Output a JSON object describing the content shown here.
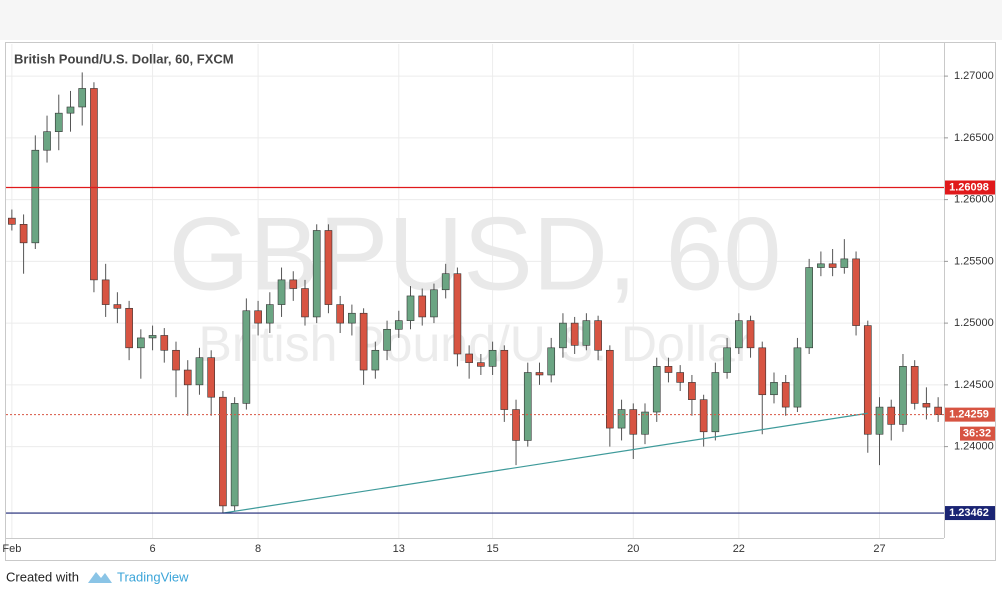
{
  "chart_data": {
    "type": "candlestick",
    "title": "British Pound/U.S. Dollar, 60, FXCM",
    "watermark": "GBPUSD, 60",
    "watermark_subtitle": "British Pound/U.S. Dollar",
    "categories": [
      "Feb",
      null,
      null,
      null,
      null,
      null,
      null,
      null,
      null,
      null,
      null,
      null,
      "6",
      null,
      null,
      null,
      null,
      null,
      null,
      null,
      null,
      "8",
      null,
      null,
      null,
      null,
      null,
      null,
      null,
      null,
      null,
      null,
      null,
      "13",
      null,
      null,
      null,
      null,
      null,
      null,
      null,
      "15",
      null,
      null,
      null,
      null,
      null,
      null,
      null,
      null,
      null,
      null,
      null,
      "20",
      null,
      null,
      null,
      null,
      null,
      null,
      null,
      null,
      "22",
      null,
      null,
      null,
      null,
      null,
      null,
      null,
      null,
      null,
      null,
      null,
      "27",
      null,
      null,
      null,
      null,
      null
    ],
    "open": [
      1.2585,
      1.258,
      1.2565,
      1.264,
      1.2655,
      1.267,
      1.2675,
      1.269,
      1.2535,
      1.2515,
      1.2512,
      1.248,
      1.2488,
      1.249,
      1.2478,
      1.2462,
      1.245,
      1.2472,
      1.244,
      1.2352,
      1.2435,
      1.251,
      1.25,
      1.2515,
      1.2535,
      1.2528,
      1.2505,
      1.2575,
      1.2515,
      1.25,
      1.2508,
      1.2462,
      1.2478,
      1.2495,
      1.2502,
      1.2522,
      1.2505,
      1.2527,
      1.254,
      1.2475,
      1.2468,
      1.2465,
      1.2478,
      1.243,
      1.2405,
      1.246,
      1.2458,
      1.248,
      1.25,
      1.2482,
      1.2502,
      1.2478,
      1.2415,
      1.243,
      1.241,
      1.2428,
      1.2465,
      1.246,
      1.2452,
      1.2438,
      1.2412,
      1.246,
      1.248,
      1.2502,
      1.248,
      1.2442,
      1.2452,
      1.2432,
      1.248,
      1.2545,
      1.2548,
      1.2545,
      1.2552,
      1.2498,
      1.241,
      1.2432,
      1.2418,
      1.2465,
      1.2435,
      1.2432
    ],
    "high": [
      1.2592,
      1.2588,
      1.2652,
      1.2668,
      1.2685,
      1.2688,
      1.2703,
      1.2695,
      1.2548,
      1.2525,
      1.2518,
      1.2495,
      1.2498,
      1.2496,
      1.2485,
      1.247,
      1.248,
      1.2478,
      1.2445,
      1.244,
      1.252,
      1.2518,
      1.2525,
      1.2545,
      1.2542,
      1.2535,
      1.258,
      1.258,
      1.2522,
      1.2515,
      1.2512,
      1.2485,
      1.2502,
      1.251,
      1.253,
      1.2528,
      1.2532,
      1.2548,
      1.2545,
      1.2482,
      1.2475,
      1.2485,
      1.2482,
      1.2438,
      1.2468,
      1.2468,
      1.2488,
      1.2508,
      1.2505,
      1.2508,
      1.2506,
      1.2482,
      1.2438,
      1.2435,
      1.2435,
      1.2472,
      1.2472,
      1.2466,
      1.2458,
      1.2442,
      1.2468,
      1.2488,
      1.2508,
      1.2506,
      1.2485,
      1.246,
      1.2458,
      1.2488,
      1.2552,
      1.2558,
      1.256,
      1.2568,
      1.2558,
      1.2502,
      1.244,
      1.2438,
      1.2475,
      1.247,
      1.2448,
      1.244
    ],
    "low": [
      1.2575,
      1.254,
      1.256,
      1.263,
      1.264,
      1.2655,
      1.266,
      1.2525,
      1.2505,
      1.25,
      1.247,
      1.2455,
      1.2478,
      1.2468,
      1.244,
      1.2425,
      1.2442,
      1.2425,
      1.23462,
      1.2348,
      1.243,
      1.249,
      1.2492,
      1.2505,
      1.2518,
      1.2498,
      1.25,
      1.2508,
      1.2492,
      1.249,
      1.245,
      1.2455,
      1.247,
      1.2488,
      1.2495,
      1.2498,
      1.25,
      1.252,
      1.2465,
      1.2455,
      1.2458,
      1.2458,
      1.242,
      1.2385,
      1.24,
      1.245,
      1.2452,
      1.2472,
      1.2475,
      1.2478,
      1.247,
      1.24,
      1.2405,
      1.239,
      1.2402,
      1.242,
      1.2452,
      1.2445,
      1.2425,
      1.24,
      1.2405,
      1.2455,
      1.2475,
      1.2472,
      1.241,
      1.2435,
      1.2425,
      1.2428,
      1.2475,
      1.2538,
      1.2538,
      1.254,
      1.249,
      1.2395,
      1.2385,
      1.2405,
      1.2412,
      1.243,
      1.2422,
      1.242
    ],
    "close": [
      1.258,
      1.2565,
      1.264,
      1.2655,
      1.267,
      1.2675,
      1.269,
      1.2535,
      1.2515,
      1.2512,
      1.248,
      1.2488,
      1.249,
      1.2478,
      1.2462,
      1.245,
      1.2472,
      1.244,
      1.2352,
      1.2435,
      1.251,
      1.25,
      1.2515,
      1.2535,
      1.2528,
      1.2505,
      1.2575,
      1.2515,
      1.25,
      1.2508,
      1.2462,
      1.2478,
      1.2495,
      1.2502,
      1.2522,
      1.2505,
      1.2527,
      1.254,
      1.2475,
      1.2468,
      1.2465,
      1.2478,
      1.243,
      1.2405,
      1.246,
      1.2458,
      1.248,
      1.25,
      1.2482,
      1.2502,
      1.2478,
      1.2415,
      1.243,
      1.241,
      1.2428,
      1.2465,
      1.246,
      1.2452,
      1.2438,
      1.2412,
      1.246,
      1.248,
      1.2502,
      1.248,
      1.2442,
      1.2452,
      1.2432,
      1.248,
      1.2545,
      1.2548,
      1.2545,
      1.2552,
      1.2498,
      1.241,
      1.2432,
      1.2418,
      1.2465,
      1.2435,
      1.2432,
      1.24259
    ],
    "up_color": "#6ba583",
    "down_color": "#d75442",
    "ylim": [
      1.2326,
      1.2726
    ],
    "yticks": [
      {
        "value": 1.24,
        "label": "1.24000"
      },
      {
        "value": 1.245,
        "label": "1.24500"
      },
      {
        "value": 1.25,
        "label": "1.25000"
      },
      {
        "value": 1.255,
        "label": "1.25500"
      },
      {
        "value": 1.26,
        "label": "1.26000"
      },
      {
        "value": 1.265,
        "label": "1.26500"
      },
      {
        "value": 1.27,
        "label": "1.27000"
      }
    ],
    "grid": true,
    "horizontal_lines": [
      {
        "value": 1.26098,
        "color": "#e0191b"
      },
      {
        "value": 1.23462,
        "color": "#1a2473"
      }
    ],
    "trendline": {
      "x": [
        18,
        73
      ],
      "y": [
        1.23462,
        1.2427
      ],
      "color": "#3e9a9a"
    },
    "last_price": {
      "value": 1.24259,
      "countdown": "36:32",
      "color": "#d75442"
    }
  },
  "footer": {
    "created_with": "Created with",
    "brand": "TradingView"
  }
}
